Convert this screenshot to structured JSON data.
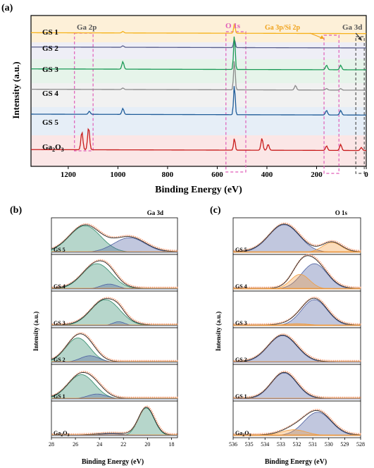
{
  "panel_labels": {
    "a": "(a)",
    "b": "(b)",
    "c": "(c)"
  },
  "colors": {
    "GS 1": "#f6b21a",
    "GS 2": "#5a5f8c",
    "GS 3": "#1a9a55",
    "GS 4": "#8a8a8a",
    "GS 5": "#1f5c99",
    "Ga2O3": "#c81b1b",
    "highlight_box": "#e05cb8",
    "annotation_orange": "#f0a21b",
    "fit_envelope": "#2b2b2b",
    "fit_green": "#2f8a6a",
    "fit_blue": "#4c5fa0",
    "fit_orange": "#f39c3c",
    "fit_cyan": "#4fb3c8",
    "raw_data": "#f4a582"
  },
  "chart_data": [
    {
      "panel": "(a)",
      "type": "line",
      "title": "",
      "xlabel": "Binding Energy (eV)",
      "ylabel": "Intensity (a.u.)",
      "xlim": [
        1350,
        0
      ],
      "x_ticks": [
        "1200",
        "1000",
        "800",
        "600",
        "400",
        "200",
        "0"
      ],
      "series": [
        {
          "name": "GS 1",
          "baseline": 0.88,
          "peaks": [
            [
              1160,
              0.0
            ],
            [
              1115,
              0.0
            ],
            [
              980,
              0.01
            ],
            [
              531,
              0.06
            ],
            [
              160,
              0.0
            ],
            [
              103,
              0.0
            ],
            [
              20,
              0.0
            ]
          ]
        },
        {
          "name": "GS 2",
          "baseline": 0.785,
          "peaks": [
            [
              1160,
              0.0
            ],
            [
              1115,
              0.0
            ],
            [
              980,
              0.01
            ],
            [
              531,
              0.06
            ],
            [
              160,
              0.0
            ],
            [
              103,
              0.0
            ],
            [
              20,
              0.0
            ]
          ]
        },
        {
          "name": "GS 3",
          "baseline": 0.64,
          "peaks": [
            [
              1160,
              0.0
            ],
            [
              1115,
              0.0
            ],
            [
              980,
              0.05
            ],
            [
              531,
              0.23
            ],
            [
              160,
              0.03
            ],
            [
              103,
              0.03
            ],
            [
              20,
              0.0
            ]
          ]
        },
        {
          "name": "GS 4",
          "baseline": 0.505,
          "peaks": [
            [
              1160,
              0.0
            ],
            [
              1115,
              0.0
            ],
            [
              980,
              0.01
            ],
            [
              531,
              0.2
            ],
            [
              285,
              0.03
            ],
            [
              160,
              0.01
            ],
            [
              103,
              0.01
            ]
          ]
        },
        {
          "name": "GS 5",
          "baseline": 0.34,
          "peaks": [
            [
              1160,
              0.0
            ],
            [
              1115,
              0.02
            ],
            [
              980,
              0.04
            ],
            [
              531,
              0.2
            ],
            [
              160,
              0.03
            ],
            [
              103,
              0.03
            ],
            [
              20,
              0.0
            ]
          ]
        },
        {
          "name": "Ga2O3",
          "baseline": 0.105,
          "peaks": [
            [
              1145,
              0.12
            ],
            [
              1118,
              0.15
            ],
            [
              531,
              0.08
            ],
            [
              420,
              0.08
            ],
            [
              395,
              0.04
            ],
            [
              160,
              0.03
            ],
            [
              103,
              0.04
            ],
            [
              20,
              0.02
            ]
          ]
        }
      ],
      "series_labels": [
        "GS 1",
        "GS 2",
        "GS 3",
        "GS 4",
        "GS 5"
      ],
      "ga2o3_label": {
        "main": "Ga",
        "sub1": "2",
        "mid": "O",
        "sub2": "3"
      },
      "annotations": [
        "Ga 2p",
        "O 1s",
        "Ga 3p/Si 2p",
        "Ga 3d"
      ]
    },
    {
      "panel": "(b)",
      "type": "area",
      "title": "Ga 3d",
      "xlabel": "Binding Energy (eV)",
      "ylabel": "Intensity (a.u.)",
      "xlim": [
        28,
        17.5
      ],
      "x_ticks": [
        "28",
        "26",
        "24",
        "22",
        "20",
        "18"
      ],
      "panels": [
        {
          "label": "GS 5",
          "peaks": [
            {
              "center": 25.2,
              "amp": 0.82,
              "sigma": 1.3
            },
            {
              "center": 21.5,
              "amp": 0.45,
              "sigma": 1.3
            }
          ]
        },
        {
          "label": "GS 4",
          "peaks": [
            {
              "center": 24.2,
              "amp": 0.78,
              "sigma": 1.2
            },
            {
              "center": 23.2,
              "amp": 0.15,
              "sigma": 0.7
            }
          ]
        },
        {
          "label": "GS 3",
          "peaks": [
            {
              "center": 23.5,
              "amp": 0.8,
              "sigma": 1.2
            },
            {
              "center": 22.4,
              "amp": 0.12,
              "sigma": 0.5
            }
          ]
        },
        {
          "label": "GS 2",
          "peaks": [
            {
              "center": 25.8,
              "amp": 0.75,
              "sigma": 1.0
            },
            {
              "center": 24.8,
              "amp": 0.2,
              "sigma": 0.8
            }
          ]
        },
        {
          "label": "GS 1",
          "peaks": [
            {
              "center": 25.5,
              "amp": 0.75,
              "sigma": 1.1
            },
            {
              "center": 24.2,
              "amp": 0.15,
              "sigma": 0.8
            }
          ]
        },
        {
          "label": "Ga2O3",
          "peaks": [
            {
              "center": 20.1,
              "amp": 0.85,
              "sigma": 0.65
            },
            {
              "center": 23.0,
              "amp": 0.05,
              "sigma": 1.2
            }
          ]
        }
      ]
    },
    {
      "panel": "(c)",
      "type": "area",
      "title": "O 1s",
      "xlabel": "Binding Energy (eV)",
      "ylabel": "Intensity (a.u.)",
      "xlim": [
        536,
        528
      ],
      "x_ticks": [
        "536",
        "535",
        "534",
        "533",
        "532",
        "531",
        "530",
        "529",
        "528"
      ],
      "panels": [
        {
          "label": "GS 5",
          "peaks": [
            {
              "center": 532.8,
              "amp": 0.85,
              "sigma": 0.95
            },
            {
              "center": 529.8,
              "amp": 0.3,
              "sigma": 0.6
            }
          ]
        },
        {
          "label": "GS 4",
          "peaks": [
            {
              "center": 530.9,
              "amp": 0.78,
              "sigma": 0.8
            },
            {
              "center": 531.8,
              "amp": 0.45,
              "sigma": 0.6
            }
          ]
        },
        {
          "label": "GS 3",
          "peaks": [
            {
              "center": 530.9,
              "amp": 0.8,
              "sigma": 0.8
            },
            {
              "center": 532.0,
              "amp": 0.06,
              "sigma": 0.8
            }
          ]
        },
        {
          "label": "GS 2",
          "peaks": [
            {
              "center": 532.9,
              "amp": 0.82,
              "sigma": 0.9
            }
          ]
        },
        {
          "label": "GS 1",
          "peaks": [
            {
              "center": 532.8,
              "amp": 0.8,
              "sigma": 0.8
            }
          ]
        },
        {
          "label": "Ga2O3",
          "peaks": [
            {
              "center": 530.7,
              "amp": 0.72,
              "sigma": 0.85
            },
            {
              "center": 532.2,
              "amp": 0.18,
              "sigma": 0.8
            }
          ]
        }
      ]
    }
  ]
}
